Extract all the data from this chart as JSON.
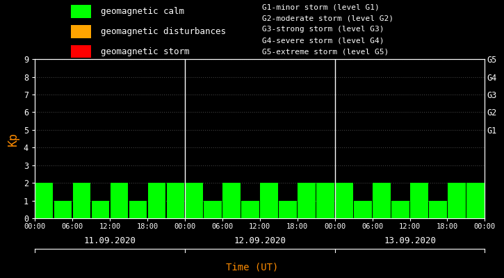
{
  "background_color": "#000000",
  "plot_bg_color": "#000000",
  "bar_color_calm": "#00ff00",
  "bar_color_disturbance": "#ffa500",
  "bar_color_storm": "#ff0000",
  "title_color": "#ff8c00",
  "text_color": "#ffffff",
  "kp_ylabel": "Kp",
  "xlabel": "Time (UT)",
  "ylim": [
    0,
    9
  ],
  "yticks": [
    0,
    1,
    2,
    3,
    4,
    5,
    6,
    7,
    8,
    9
  ],
  "days": [
    "11.09.2020",
    "12.09.2020",
    "13.09.2020"
  ],
  "kp_values": [
    [
      2,
      1,
      2,
      1,
      2,
      1,
      2,
      2
    ],
    [
      2,
      1,
      2,
      1,
      2,
      1,
      2,
      2
    ],
    [
      2,
      1,
      2,
      1,
      2,
      1,
      2,
      2
    ]
  ],
  "legend_items": [
    {
      "label": "geomagnetic calm",
      "color": "#00ff00"
    },
    {
      "label": "geomagnetic disturbances",
      "color": "#ffa500"
    },
    {
      "label": "geomagnetic storm",
      "color": "#ff0000"
    }
  ],
  "right_labels": [
    {
      "y": 9,
      "text": "G5"
    },
    {
      "y": 8,
      "text": "G4"
    },
    {
      "y": 7,
      "text": "G3"
    },
    {
      "y": 6,
      "text": "G2"
    },
    {
      "y": 5,
      "text": "G1"
    }
  ],
  "storm_levels": [
    "G1-minor storm (level G1)",
    "G2-moderate storm (level G2)",
    "G3-strong storm (level G3)",
    "G4-severe storm (level G4)",
    "G5-extreme storm (level G5)"
  ],
  "xtick_labels": [
    "00:00",
    "06:00",
    "12:00",
    "18:00",
    "00:00",
    "06:00",
    "12:00",
    "18:00",
    "00:00",
    "06:00",
    "12:00",
    "18:00",
    "00:00"
  ],
  "separator_color": "#ffffff",
  "dot_color": "#404040"
}
